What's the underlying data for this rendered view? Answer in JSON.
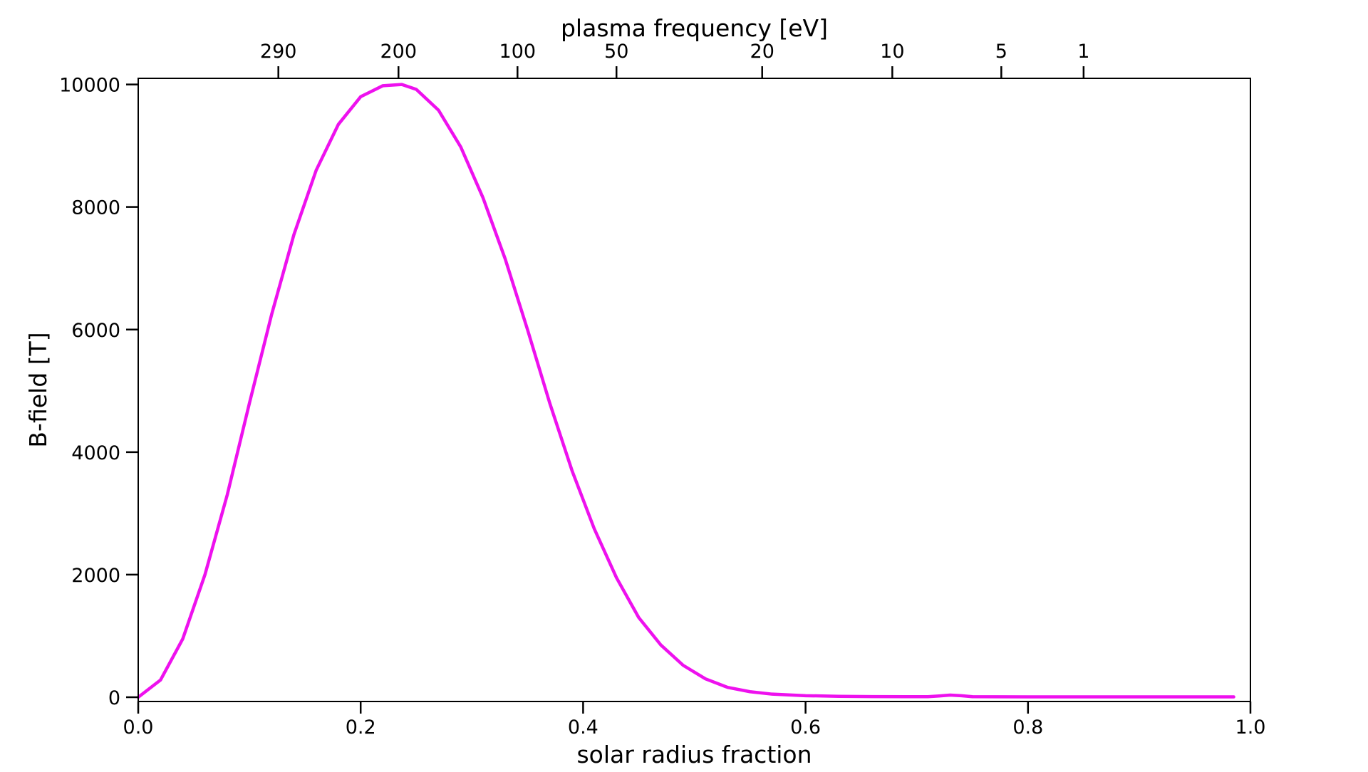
{
  "chart_data": {
    "type": "line",
    "title": "",
    "xlabel": "solar radius fraction",
    "ylabel": "B-field [T]",
    "top_xlabel": "plasma frequency [eV]",
    "xlim": [
      0.0,
      1.0
    ],
    "ylim": [
      -70,
      10100
    ],
    "xticks": [
      0.0,
      0.2,
      0.4,
      0.6,
      0.8,
      1.0
    ],
    "xtick_labels": [
      "0.0",
      "0.2",
      "0.4",
      "0.6",
      "0.8",
      "1.0"
    ],
    "yticks": [
      0,
      2000,
      4000,
      6000,
      8000,
      10000
    ],
    "ytick_labels": [
      "0",
      "2000",
      "4000",
      "6000",
      "8000",
      "10000"
    ],
    "top_ticks": [
      {
        "label": "290",
        "x": 0.126
      },
      {
        "label": "200",
        "x": 0.234
      },
      {
        "label": "100",
        "x": 0.341
      },
      {
        "label": "50",
        "x": 0.43
      },
      {
        "label": "20",
        "x": 0.561
      },
      {
        "label": "10",
        "x": 0.678
      },
      {
        "label": "5",
        "x": 0.776
      },
      {
        "label": "1",
        "x": 0.85
      }
    ],
    "grid": false,
    "legend": null,
    "series": [
      {
        "color": "#ee11ee",
        "x": [
          0.0,
          0.02,
          0.04,
          0.06,
          0.08,
          0.1,
          0.12,
          0.14,
          0.16,
          0.18,
          0.2,
          0.22,
          0.237,
          0.25,
          0.27,
          0.29,
          0.31,
          0.33,
          0.35,
          0.37,
          0.39,
          0.41,
          0.43,
          0.45,
          0.47,
          0.49,
          0.51,
          0.53,
          0.55,
          0.57,
          0.6,
          0.63,
          0.66,
          0.71,
          0.72,
          0.73,
          0.74,
          0.75,
          0.8,
          0.9,
          0.985
        ],
        "y": [
          0,
          280,
          950,
          2000,
          3300,
          4800,
          6250,
          7550,
          8600,
          9350,
          9800,
          9980,
          10000,
          9920,
          9580,
          8980,
          8150,
          7150,
          6000,
          4800,
          3700,
          2750,
          1950,
          1300,
          850,
          520,
          300,
          160,
          90,
          50,
          25,
          15,
          10,
          8,
          20,
          35,
          25,
          8,
          5,
          5,
          5
        ]
      }
    ]
  }
}
